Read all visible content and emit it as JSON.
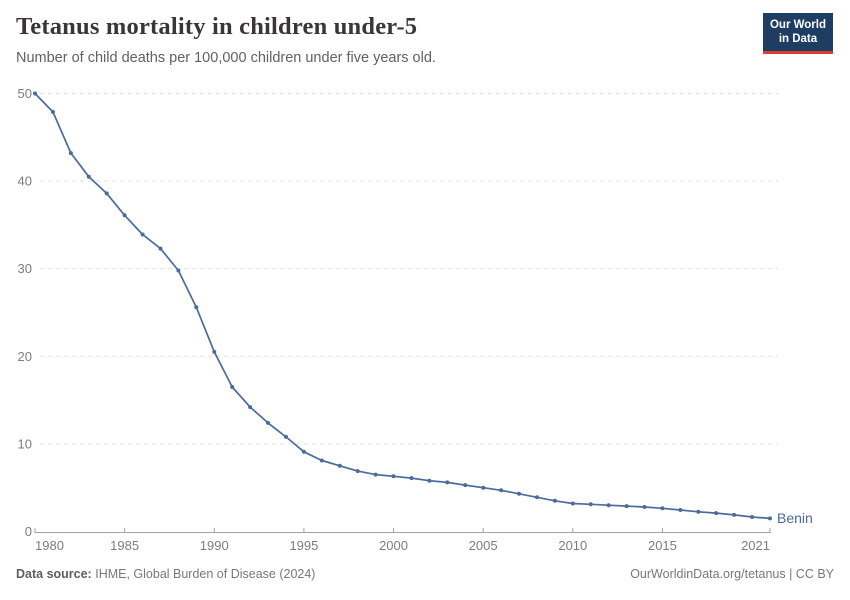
{
  "header": {
    "title": "Tetanus mortality in children under-5",
    "subtitle": "Number of child deaths per 100,000 children under five years old.",
    "logo": {
      "line1": "Our World",
      "line2": "in Data",
      "bg_color": "#1d3d63",
      "accent_color": "#dc3e31"
    }
  },
  "chart_data": {
    "type": "line",
    "title": "Tetanus mortality in children under-5",
    "xlabel": "",
    "ylabel": "",
    "xlim": [
      1980,
      2021
    ],
    "ylim": [
      0,
      50
    ],
    "xticks": [
      1980,
      1985,
      1990,
      1995,
      2000,
      2005,
      2010,
      2015,
      2021
    ],
    "yticks": [
      0,
      10,
      20,
      30,
      40,
      50
    ],
    "grid": "horizontal-dashed",
    "legend_position": "end-of-line-label",
    "series": [
      {
        "name": "Benin",
        "color": "#4c6a9c",
        "x": [
          1980,
          1981,
          1982,
          1983,
          1984,
          1985,
          1986,
          1987,
          1988,
          1989,
          1990,
          1991,
          1992,
          1993,
          1994,
          1995,
          1996,
          1997,
          1998,
          1999,
          2000,
          2001,
          2002,
          2003,
          2004,
          2005,
          2006,
          2007,
          2008,
          2009,
          2010,
          2011,
          2012,
          2013,
          2014,
          2015,
          2016,
          2017,
          2018,
          2019,
          2020,
          2021
        ],
        "values": [
          50,
          47.9,
          43.2,
          40.5,
          38.6,
          36.1,
          33.9,
          32.3,
          29.8,
          25.6,
          20.5,
          16.5,
          14.2,
          12.4,
          10.8,
          9.1,
          8.1,
          7.5,
          6.9,
          6.5,
          6.3,
          6.1,
          5.8,
          5.6,
          5.3,
          5.0,
          4.7,
          4.3,
          3.9,
          3.5,
          3.2,
          3.1,
          3.0,
          2.9,
          2.8,
          2.65,
          2.45,
          2.25,
          2.1,
          1.9,
          1.65,
          1.5
        ]
      }
    ]
  },
  "footer": {
    "source_label": "Data source:",
    "source_text": "IHME, Global Burden of Disease (2024)",
    "credit": "OurWorldinData.org/tetanus | CC BY"
  },
  "colors": {
    "line": "#4c6a9c",
    "grid": "#e0e0e0",
    "axis": "#a3a3a3",
    "tick_text": "#7d7d7d",
    "title_text": "#383636",
    "subtitle_text": "#616161"
  }
}
